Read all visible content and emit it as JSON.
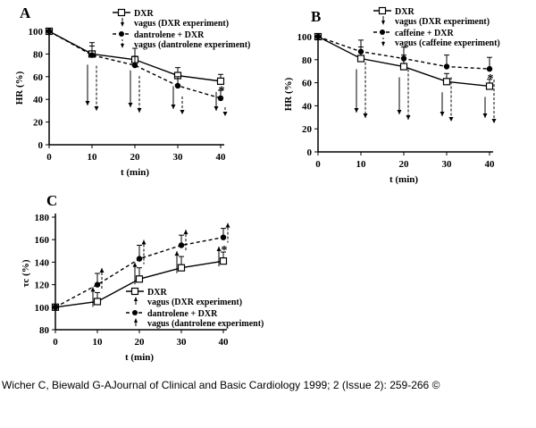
{
  "caption": "Wicher C, Biewald G-AJournal of Clinical and Basic Cardiology 1999; 2 (Issue 2): 259-266 ©",
  "chart_data": [
    {
      "type": "line",
      "panel": "A",
      "xlabel": "t (min)",
      "ylabel": "HR (%)",
      "xlim": [
        0,
        40
      ],
      "ylim": [
        0,
        100
      ],
      "xticks": [
        0,
        10,
        20,
        30,
        40
      ],
      "yticks": [
        0,
        20,
        40,
        60,
        80,
        100
      ],
      "x": [
        0,
        10,
        20,
        30,
        40
      ],
      "series": [
        {
          "name": "DXR",
          "legend": "DXR",
          "style": "solid",
          "marker": "open-square",
          "values": [
            100,
            80,
            75,
            61,
            56
          ],
          "err": [
            0,
            10,
            10,
            7,
            6
          ]
        },
        {
          "name": "dantrolene + DXR",
          "legend": "dantrolene + DXR",
          "style": "dashed",
          "marker": "filled-circle",
          "values": [
            100,
            79,
            70,
            52,
            41
          ],
          "err": [
            0,
            8,
            8,
            8,
            7
          ]
        }
      ],
      "arrow_legends": [
        "vagus (DXR experiment)",
        "vagus (dantrolene experiment)"
      ],
      "annotation": "*"
    },
    {
      "type": "line",
      "panel": "B",
      "xlabel": "t (min)",
      "ylabel": "HR (%)",
      "xlim": [
        0,
        40
      ],
      "ylim": [
        0,
        100
      ],
      "xticks": [
        0,
        10,
        20,
        30,
        40
      ],
      "yticks": [
        0,
        20,
        40,
        60,
        80,
        100
      ],
      "x": [
        0,
        10,
        20,
        30,
        40
      ],
      "series": [
        {
          "name": "DXR",
          "legend": "DXR",
          "style": "solid",
          "marker": "open-square",
          "values": [
            100,
            81,
            74,
            61,
            57
          ],
          "err": [
            0,
            10,
            10,
            7,
            6
          ]
        },
        {
          "name": "caffeine + DXR",
          "legend": "caffeine + DXR",
          "style": "dashed",
          "marker": "filled-circle",
          "values": [
            100,
            87,
            81,
            74,
            72
          ],
          "err": [
            0,
            10,
            10,
            10,
            10
          ]
        }
      ],
      "arrow_legends": [
        "vagus (DXR experiment)",
        "vagus (caffeine experiment)"
      ],
      "annotation": "*"
    },
    {
      "type": "line",
      "panel": "C",
      "xlabel": "t (min)",
      "ylabel": "τc (%)",
      "xlim": [
        0,
        40
      ],
      "ylim": [
        80,
        180
      ],
      "xticks": [
        0,
        10,
        20,
        30,
        40
      ],
      "yticks": [
        80,
        100,
        120,
        140,
        160,
        180
      ],
      "x": [
        0,
        10,
        20,
        30,
        40
      ],
      "series": [
        {
          "name": "DXR",
          "legend": "DXR",
          "style": "solid",
          "marker": "open-square",
          "values": [
            100,
            105,
            125,
            135,
            141
          ],
          "err": [
            0,
            8,
            10,
            10,
            8
          ]
        },
        {
          "name": "dantrolene + DXR",
          "legend": "dantrolene + DXR",
          "style": "dashed",
          "marker": "filled-circle",
          "values": [
            100,
            120,
            143,
            155,
            162
          ],
          "err": [
            0,
            10,
            12,
            9,
            8
          ]
        }
      ],
      "arrow_legends": [
        "vagus (DXR experiment)",
        "vagus (dantrolene experiment)"
      ],
      "annotation": "*"
    }
  ]
}
